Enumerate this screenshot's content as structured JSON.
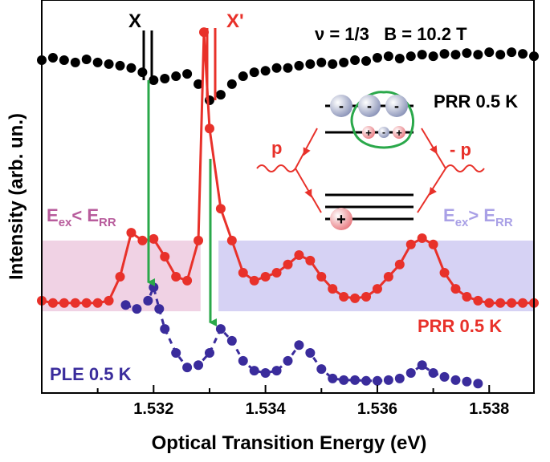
{
  "chart_data": {
    "type": "line",
    "xlabel": "Optical Transition Energy (eV)",
    "ylabel": "Intensity (arb. un.)",
    "xlim": [
      1.53,
      1.5388
    ],
    "ylim": [
      0,
      10
    ],
    "xticks": [
      1.532,
      1.534,
      1.536,
      1.538
    ],
    "xminorticks": [
      1.531,
      1.533,
      1.535,
      1.537
    ],
    "conditions": "ν = 1/3   B = 10.2 T",
    "peak_labels": [
      "X",
      "X'"
    ],
    "region_labels": [
      [
        "E",
        "ex",
        "< E",
        "RR"
      ],
      [
        "E",
        "ex",
        "> E",
        "RR"
      ]
    ],
    "momentum_labels": [
      "p",
      "- p"
    ],
    "shaded_regions": [
      {
        "x": [
          1.53,
          1.53284
        ],
        "y": [
          2.08,
          3.88
        ],
        "color": "#f0d2e4"
      },
      {
        "x": [
          1.53316,
          1.5388
        ],
        "y": [
          2.08,
          3.88
        ],
        "color": "#d6d2f4"
      }
    ],
    "series": [
      {
        "name": "PRR 0.5 K",
        "color": "#000000",
        "line_style": "none",
        "x": [
          1.53,
          1.5302,
          1.5304,
          1.5306,
          1.5308,
          1.531,
          1.5312,
          1.5314,
          1.5316,
          1.5318,
          1.532,
          1.5322,
          1.5324,
          1.5326,
          1.5328,
          1.533,
          1.5332,
          1.5334,
          1.5336,
          1.5338,
          1.534,
          1.5342,
          1.5344,
          1.5346,
          1.5348,
          1.535,
          1.5352,
          1.5354,
          1.5356,
          1.5358,
          1.536,
          1.5362,
          1.5364,
          1.5366,
          1.5368,
          1.537,
          1.5372,
          1.5374,
          1.5376,
          1.5378,
          1.538,
          1.5382,
          1.5384,
          1.5386,
          1.5388
        ],
        "values": [
          8.47,
          8.53,
          8.47,
          8.41,
          8.49,
          8.41,
          8.37,
          8.33,
          8.27,
          8.16,
          7.96,
          8.0,
          8.06,
          8.12,
          7.86,
          7.45,
          7.59,
          7.86,
          8.06,
          8.16,
          8.2,
          8.27,
          8.27,
          8.33,
          8.37,
          8.41,
          8.37,
          8.41,
          8.47,
          8.45,
          8.53,
          8.57,
          8.51,
          8.57,
          8.61,
          8.57,
          8.63,
          8.61,
          8.65,
          8.61,
          8.67,
          8.61,
          8.67,
          8.63,
          8.57
        ]
      },
      {
        "name": "PRR 0.5 K",
        "color": "#e8312a",
        "line_style": "solid",
        "x": [
          1.53,
          1.5302,
          1.5304,
          1.5306,
          1.5308,
          1.531,
          1.5312,
          1.5314,
          1.5316,
          1.5318,
          1.532,
          1.5322,
          1.5324,
          1.5326,
          1.5328,
          1.5329,
          1.533,
          1.5332,
          1.5334,
          1.5336,
          1.5338,
          1.534,
          1.5342,
          1.5344,
          1.5346,
          1.5348,
          1.535,
          1.5352,
          1.5354,
          1.5356,
          1.5358,
          1.536,
          1.5362,
          1.5364,
          1.5366,
          1.5368,
          1.537,
          1.5372,
          1.5374,
          1.5376,
          1.5378,
          1.538,
          1.5382,
          1.5384,
          1.5386,
          1.5388
        ],
        "values": [
          2.35,
          2.29,
          2.29,
          2.29,
          2.29,
          2.29,
          2.35,
          2.96,
          4.08,
          3.88,
          3.92,
          3.47,
          2.96,
          2.86,
          3.88,
          9.18,
          6.73,
          4.69,
          3.88,
          3.06,
          2.86,
          2.96,
          3.06,
          3.27,
          3.51,
          3.37,
          2.96,
          2.65,
          2.45,
          2.41,
          2.45,
          2.65,
          2.96,
          3.27,
          3.78,
          3.94,
          3.78,
          3.06,
          2.65,
          2.45,
          2.35,
          2.29,
          2.29,
          2.29,
          2.29,
          2.29
        ]
      },
      {
        "name": "PLE 0.5 K",
        "color": "#3a2c9c",
        "line_style": "dashed",
        "x": [
          1.5315,
          1.5317,
          1.5319,
          1.532,
          1.5321,
          1.5322,
          1.5324,
          1.5326,
          1.5328,
          1.533,
          1.5332,
          1.5334,
          1.5336,
          1.5338,
          1.534,
          1.5342,
          1.5344,
          1.5346,
          1.5348,
          1.535,
          1.5352,
          1.5354,
          1.5356,
          1.5358,
          1.536,
          1.5362,
          1.5364,
          1.5366,
          1.5368,
          1.537,
          1.5372,
          1.5374,
          1.5376,
          1.5378
        ],
        "values": [
          2.24,
          2.14,
          2.35,
          2.69,
          2.14,
          1.63,
          1.02,
          0.65,
          0.71,
          1.02,
          1.63,
          1.33,
          0.82,
          0.57,
          0.51,
          0.57,
          0.82,
          1.22,
          1.02,
          0.61,
          0.37,
          0.33,
          0.33,
          0.31,
          0.31,
          0.33,
          0.37,
          0.51,
          0.71,
          0.51,
          0.41,
          0.33,
          0.29,
          0.24
        ]
      }
    ]
  }
}
